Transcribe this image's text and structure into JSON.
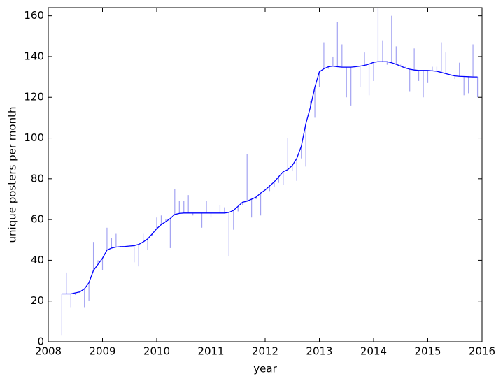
{
  "chart_data": {
    "type": "line",
    "xlabel": "year",
    "ylabel": "unique posters per month",
    "xlim": [
      2008,
      2016
    ],
    "xticks": [
      2008,
      2009,
      2010,
      2011,
      2012,
      2013,
      2014,
      2015,
      2016
    ],
    "ylim": [
      0,
      164
    ],
    "yticks": [
      0,
      20,
      40,
      60,
      80,
      100,
      120,
      140,
      160
    ],
    "x": [
      2008.25,
      2008.333,
      2008.417,
      2008.5,
      2008.583,
      2008.667,
      2008.75,
      2008.833,
      2008.917,
      2009.0,
      2009.083,
      2009.167,
      2009.25,
      2009.333,
      2009.417,
      2009.5,
      2009.583,
      2009.667,
      2009.75,
      2009.833,
      2009.917,
      2010.0,
      2010.083,
      2010.167,
      2010.25,
      2010.333,
      2010.417,
      2010.5,
      2010.583,
      2010.667,
      2010.75,
      2010.833,
      2010.917,
      2011.0,
      2011.083,
      2011.167,
      2011.25,
      2011.333,
      2011.417,
      2011.5,
      2011.583,
      2011.667,
      2011.75,
      2011.833,
      2011.917,
      2012.0,
      2012.083,
      2012.167,
      2012.25,
      2012.333,
      2012.417,
      2012.5,
      2012.583,
      2012.667,
      2012.75,
      2012.833,
      2012.917,
      2013.0,
      2013.083,
      2013.167,
      2013.25,
      2013.333,
      2013.417,
      2013.5,
      2013.583,
      2013.667,
      2013.75,
      2013.833,
      2013.917,
      2014.0,
      2014.083,
      2014.167,
      2014.25,
      2014.333,
      2014.417,
      2014.5,
      2014.583,
      2014.667,
      2014.75,
      2014.833,
      2014.917,
      2015.0,
      2015.083,
      2015.167,
      2015.25,
      2015.333,
      2015.417,
      2015.5,
      2015.583,
      2015.667,
      2015.75,
      2015.833,
      2015.917
    ],
    "series": [
      {
        "color": "#0000ff",
        "values": [
          23.5,
          23.5,
          23.5,
          24,
          24.5,
          26,
          29,
          35,
          38,
          41,
          45,
          46,
          46.5,
          46.7,
          46.8,
          47,
          47.2,
          47.8,
          49,
          50.5,
          53,
          55.5,
          57.5,
          59,
          60.5,
          62.5,
          63,
          63.2,
          63.2,
          63.2,
          63.2,
          63.2,
          63.2,
          63.2,
          63.2,
          63.2,
          63.2,
          63.5,
          64.5,
          66.5,
          68.5,
          69,
          70,
          71,
          73,
          74.5,
          76.5,
          78.5,
          81,
          83.5,
          84.5,
          86.5,
          90,
          96,
          107,
          115,
          125,
          132.5,
          134,
          135,
          135.3,
          135,
          134.8,
          134.8,
          134.8,
          135,
          135.3,
          135.7,
          136.3,
          137.2,
          137.5,
          137.5,
          137.5,
          137,
          136.2,
          135.3,
          134.4,
          133.8,
          133.4,
          133.2,
          133.2,
          133.2,
          133,
          132.8,
          132.2,
          131.6,
          131,
          130.5,
          130.3,
          130.2,
          130.1,
          130,
          130
        ]
      },
      {
        "color": "#a3a3f2",
        "draw": "vlines",
        "values": [
          3,
          34,
          17,
          23,
          24,
          17,
          20,
          49,
          40,
          35,
          56,
          51,
          53,
          47,
          47,
          47,
          39,
          37,
          53,
          45,
          52,
          61,
          62,
          60,
          46,
          75,
          69,
          69,
          72,
          62,
          63,
          56,
          69,
          61,
          63,
          67,
          66,
          42,
          55,
          64,
          67,
          92,
          61,
          70,
          62,
          75,
          74,
          76,
          78,
          77,
          100,
          84,
          79,
          90,
          86,
          118,
          110,
          125,
          147,
          134,
          140,
          157,
          146,
          120,
          116,
          135,
          125,
          142,
          121,
          128,
          165,
          148,
          136,
          160,
          145,
          136,
          135,
          123,
          144,
          128,
          120,
          127,
          135,
          135,
          147,
          142,
          131,
          129,
          137,
          121,
          122,
          146,
          120
        ]
      }
    ]
  }
}
